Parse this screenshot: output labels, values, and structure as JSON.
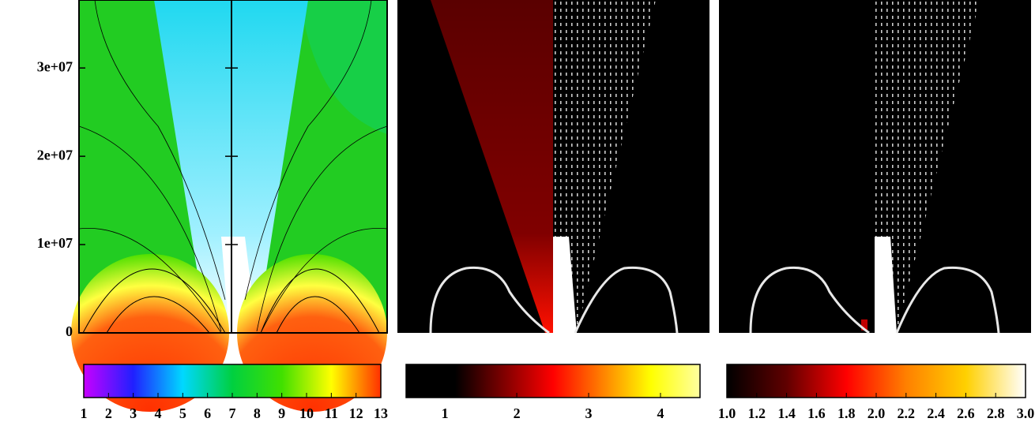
{
  "chart_data": [
    {
      "type": "heatmap",
      "ylim": [
        0,
        37700000
      ],
      "yticks": [
        0,
        {
          "value": 10000000,
          "label": "1e+07"
        },
        {
          "value": 20000000,
          "label": "2e+07"
        },
        {
          "value": 30000000,
          "label": "3e+07"
        }
      ],
      "colorbar": {
        "clim": [
          1,
          13
        ],
        "ticks": [
          1,
          2,
          3,
          4,
          5,
          6,
          7,
          8,
          9,
          10,
          11,
          12,
          13
        ],
        "colors": [
          "#c800ff",
          "#2020ff",
          "#00d8ff",
          "#00d040",
          "#40e000",
          "#ffff00",
          "#ff3000"
        ]
      }
    },
    {
      "type": "heatmap",
      "colorbar": {
        "clim": [
          0.46,
          4.55
        ],
        "ticks": [
          1,
          2,
          3,
          4
        ],
        "colors": [
          "#000000",
          "#000000",
          "#800000",
          "#ff0000",
          "#ff8000",
          "#ffff00",
          "#ffffa0"
        ]
      }
    },
    {
      "type": "heatmap",
      "colorbar": {
        "clim": [
          1,
          3
        ],
        "ticks": [
          {
            "value": 1,
            "label": "1.0"
          },
          {
            "value": 1.2,
            "label": "1.2"
          },
          {
            "value": 1.4,
            "label": "1.4"
          },
          {
            "value": 1.6,
            "label": "1.6"
          },
          {
            "value": 1.8,
            "label": "1.8"
          },
          {
            "value": 2,
            "label": "2.0"
          },
          {
            "value": 2.2,
            "label": "2.2"
          },
          {
            "value": 2.4,
            "label": "2.4"
          },
          {
            "value": 2.6,
            "label": "2.6"
          },
          {
            "value": 2.8,
            "label": "2.8"
          },
          {
            "value": 3,
            "label": "3.0"
          }
        ],
        "colors": [
          "#000000",
          "#600000",
          "#ff0000",
          "#ff8000",
          "#ffd000",
          "#ffffff"
        ]
      }
    }
  ]
}
